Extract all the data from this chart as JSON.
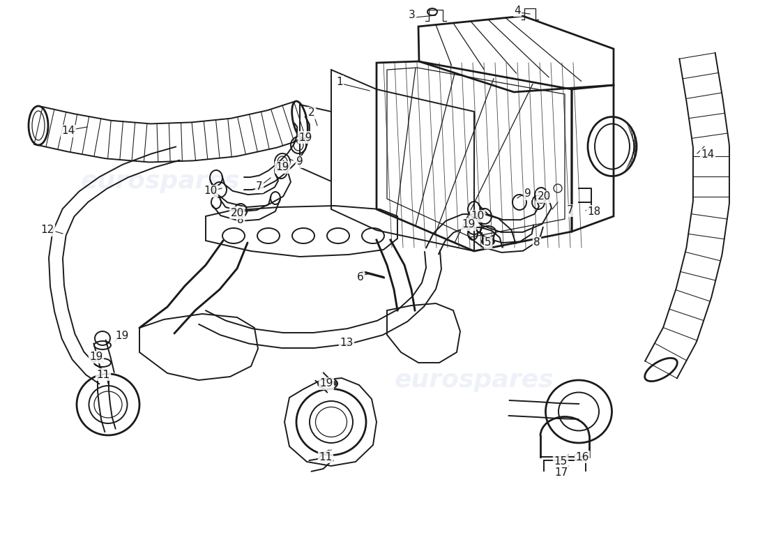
{
  "background_color": "#ffffff",
  "line_color": "#1a1a1a",
  "watermark_color": "#c8d4e8",
  "watermark_text": "eurospares",
  "watermark_alpha": 0.3,
  "lw_main": 1.4,
  "lw_thick": 2.0,
  "lw_thin": 0.9,
  "font_size": 11
}
